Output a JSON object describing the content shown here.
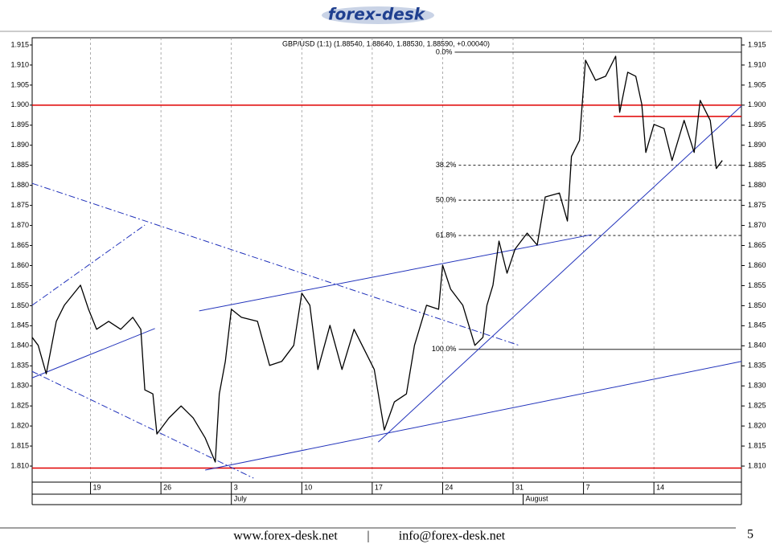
{
  "header": {
    "logo": "forex-desk"
  },
  "footer": {
    "website": "www.forex-desk.net",
    "separator": "|",
    "email": "info@forex-desk.net",
    "page": "5"
  },
  "chart_data": {
    "type": "line",
    "title": "GBP/USD (1:1) (1.88540, 1.88640, 1.88530, 1.88590, +0.00040)",
    "xlim": [
      13.2,
      83.7
    ],
    "ylim": [
      1.806,
      1.9168
    ],
    "xticks": [
      19,
      26,
      {
        "value": 33,
        "label": "3"
      },
      {
        "value": 40,
        "label": "10"
      },
      {
        "value": 47,
        "label": "17"
      },
      {
        "value": 54,
        "label": "24"
      },
      {
        "value": 61,
        "label": "31"
      },
      {
        "value": 68,
        "label": "7"
      },
      {
        "value": 75,
        "label": "14"
      }
    ],
    "months": [
      {
        "value": 33,
        "label": "July"
      },
      {
        "value": 62,
        "label": "August"
      }
    ],
    "yticks": [
      {
        "value": 1.81,
        "label": "1.810"
      },
      1.815,
      {
        "value": 1.82,
        "label": "1.820"
      },
      1.825,
      {
        "value": 1.83,
        "label": "1.830"
      },
      1.835,
      {
        "value": 1.84,
        "label": "1.840"
      },
      1.845,
      {
        "value": 1.85,
        "label": "1.850"
      },
      1.855,
      {
        "value": 1.86,
        "label": "1.860"
      },
      1.865,
      {
        "value": 1.87,
        "label": "1.870"
      },
      1.875,
      {
        "value": 1.88,
        "label": "1.880"
      },
      1.885,
      {
        "value": 1.89,
        "label": "1.890"
      },
      1.895,
      {
        "value": 1.9,
        "label": "1.900"
      },
      1.905,
      {
        "value": 1.91,
        "label": "1.910"
      },
      1.915
    ],
    "grid": true,
    "series": [
      {
        "name": "GBP/USD",
        "color": "#000000",
        "x": [
          13.2,
          13.8,
          14.6,
          15.6,
          16.4,
          18.0,
          18.8,
          19.6,
          20.8,
          22.0,
          23.2,
          24.0,
          24.4,
          25.2,
          25.6,
          26.8,
          28.0,
          29.2,
          30.4,
          31.4,
          31.8,
          32.4,
          33.0,
          34.0,
          35.6,
          36.8,
          38.0,
          39.2,
          40.0,
          40.8,
          41.6,
          42.8,
          44.0,
          45.2,
          46.4,
          47.2,
          48.2,
          49.2,
          50.4,
          51.2,
          52.4,
          53.6,
          54.0,
          54.8,
          56.0,
          57.2,
          58.0,
          58.4,
          59.0,
          59.6,
          60.4,
          61.2,
          62.4,
          63.4,
          64.2,
          65.6,
          66.4,
          66.8,
          67.6,
          68.2,
          69.2,
          70.2,
          71.2,
          71.6,
          72.4,
          73.2,
          73.8,
          74.2,
          75.0,
          76.0,
          76.8,
          78.0,
          79.0,
          79.6,
          80.6,
          81.2,
          81.8
        ],
        "values": [
          1.8421,
          1.8401,
          1.833,
          1.8461,
          1.8501,
          1.8551,
          1.8491,
          1.8441,
          1.8461,
          1.8441,
          1.8471,
          1.8441,
          1.829,
          1.828,
          1.818,
          1.822,
          1.825,
          1.822,
          1.817,
          1.811,
          1.828,
          1.8361,
          1.8491,
          1.8471,
          1.8461,
          1.8351,
          1.8361,
          1.8401,
          1.8531,
          1.8501,
          1.8341,
          1.8451,
          1.8341,
          1.8441,
          1.8381,
          1.8341,
          1.819,
          1.826,
          1.828,
          1.8401,
          1.8501,
          1.8491,
          1.8601,
          1.8541,
          1.8501,
          1.8401,
          1.8421,
          1.8501,
          1.8551,
          1.8661,
          1.8581,
          1.8641,
          1.8681,
          1.8651,
          1.8771,
          1.8781,
          1.8711,
          1.8872,
          1.8912,
          1.9112,
          1.9062,
          1.9072,
          1.9122,
          1.8982,
          1.9082,
          1.9072,
          1.9002,
          1.8882,
          1.8952,
          1.8942,
          1.8862,
          1.8962,
          1.8882,
          1.9012,
          1.8962,
          1.8842,
          1.8862
        ]
      }
    ],
    "hlines": [
      {
        "value": 1.9,
        "color": "#e00000"
      },
      {
        "value": 1.8095,
        "color": "#e00000"
      },
      {
        "value": 1.8972,
        "color": "#e00000",
        "x": 71.0
      }
    ],
    "fib_levels": [
      {
        "label": "0.0%",
        "value": 1.9132,
        "x": 55.2,
        "style": "solid"
      },
      {
        "label": "38.2%",
        "value": 1.885,
        "x": 55.6,
        "style": "dashed"
      },
      {
        "label": "50.0%",
        "value": 1.8763,
        "x": 55.6,
        "style": "dashed"
      },
      {
        "label": "61.8%",
        "value": 1.8675,
        "x": 55.6,
        "style": "dashed"
      },
      {
        "label": "100.0%",
        "value": 1.8391,
        "x": 55.6,
        "style": "solid"
      }
    ],
    "trendlines": [
      {
        "x": [
          13.2,
          25.4
        ],
        "y": [
          1.832,
          1.8443
        ],
        "style": "solid",
        "color": "#2233bb"
      },
      {
        "x": [
          13.2,
          24.4
        ],
        "y": [
          1.8501,
          1.8701
        ],
        "style": "dashdot",
        "color": "#2233bb"
      },
      {
        "x": [
          13.2,
          61.6
        ],
        "y": [
          1.8805,
          1.8401
        ],
        "style": "dashdot",
        "color": "#2233bb"
      },
      {
        "x": [
          13.2,
          35.2
        ],
        "y": [
          1.8336,
          1.807
        ],
        "style": "dashdot",
        "color": "#2233bb"
      },
      {
        "x": [
          29.8,
          68.8
        ],
        "y": [
          1.8487,
          1.8677
        ],
        "style": "solid",
        "color": "#2233bb"
      },
      {
        "x": [
          30.4,
          83.7
        ],
        "y": [
          1.809,
          1.8361
        ],
        "style": "solid",
        "color": "#2233bb"
      },
      {
        "x": [
          47.6,
          83.7
        ],
        "y": [
          1.816,
          1.8998
        ],
        "style": "solid",
        "color": "#2233bb"
      }
    ]
  }
}
